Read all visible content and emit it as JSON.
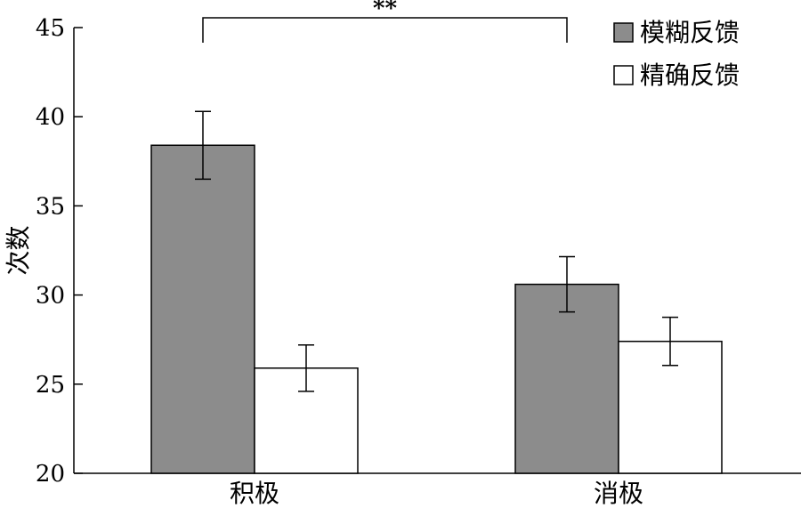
{
  "chart_data": {
    "type": "bar",
    "ylabel": "次数",
    "ylim": [
      20,
      45
    ],
    "yticks": [
      20,
      25,
      30,
      35,
      40,
      45
    ],
    "categories": [
      "积极",
      "消极"
    ],
    "series": [
      {
        "name": "模糊反馈",
        "values": [
          38.4,
          30.6
        ],
        "errors": [
          1.9,
          1.55
        ],
        "color": "#8c8c8c"
      },
      {
        "name": "精确反馈",
        "values": [
          25.9,
          27.4
        ],
        "errors": [
          1.3,
          1.35
        ],
        "color": "#ffffff"
      }
    ],
    "legend_position": "top-right",
    "grid": false,
    "significance": {
      "label": "**",
      "from_category": 0,
      "to_category": 1,
      "series": 0
    }
  }
}
